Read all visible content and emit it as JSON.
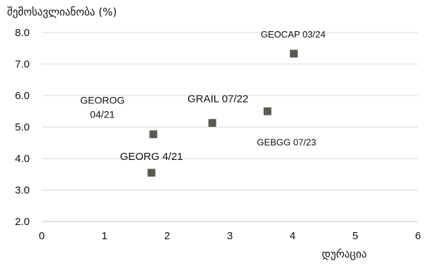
{
  "chart_data": {
    "type": "scatter",
    "ylabel": "შემოსავლიანობა (%)",
    "xlabel": "დურაცია",
    "xlim": [
      0,
      6
    ],
    "ylim": [
      2.0,
      8.0
    ],
    "x_ticks": [
      "0",
      "1",
      "2",
      "3",
      "4",
      "5",
      "6"
    ],
    "y_ticks": [
      "2.0",
      "3.0",
      "4.0",
      "5.0",
      "6.0",
      "7.0",
      "8.0"
    ],
    "grid": "horizontal",
    "marker_color": "#5a5a50",
    "points": [
      {
        "x": 1.78,
        "y": 4.77,
        "label": [
          "GEOROG",
          "04/21"
        ]
      },
      {
        "x": 1.75,
        "y": 3.55,
        "label": [
          "GEORG 4/21"
        ]
      },
      {
        "x": 2.72,
        "y": 5.13,
        "label": [
          "GRAIL 07/22"
        ]
      },
      {
        "x": 3.6,
        "y": 5.5,
        "label": [
          "GEBGG 07/23"
        ]
      },
      {
        "x": 4.02,
        "y": 7.33,
        "label": [
          "GEOCAP 03/24"
        ]
      }
    ]
  }
}
